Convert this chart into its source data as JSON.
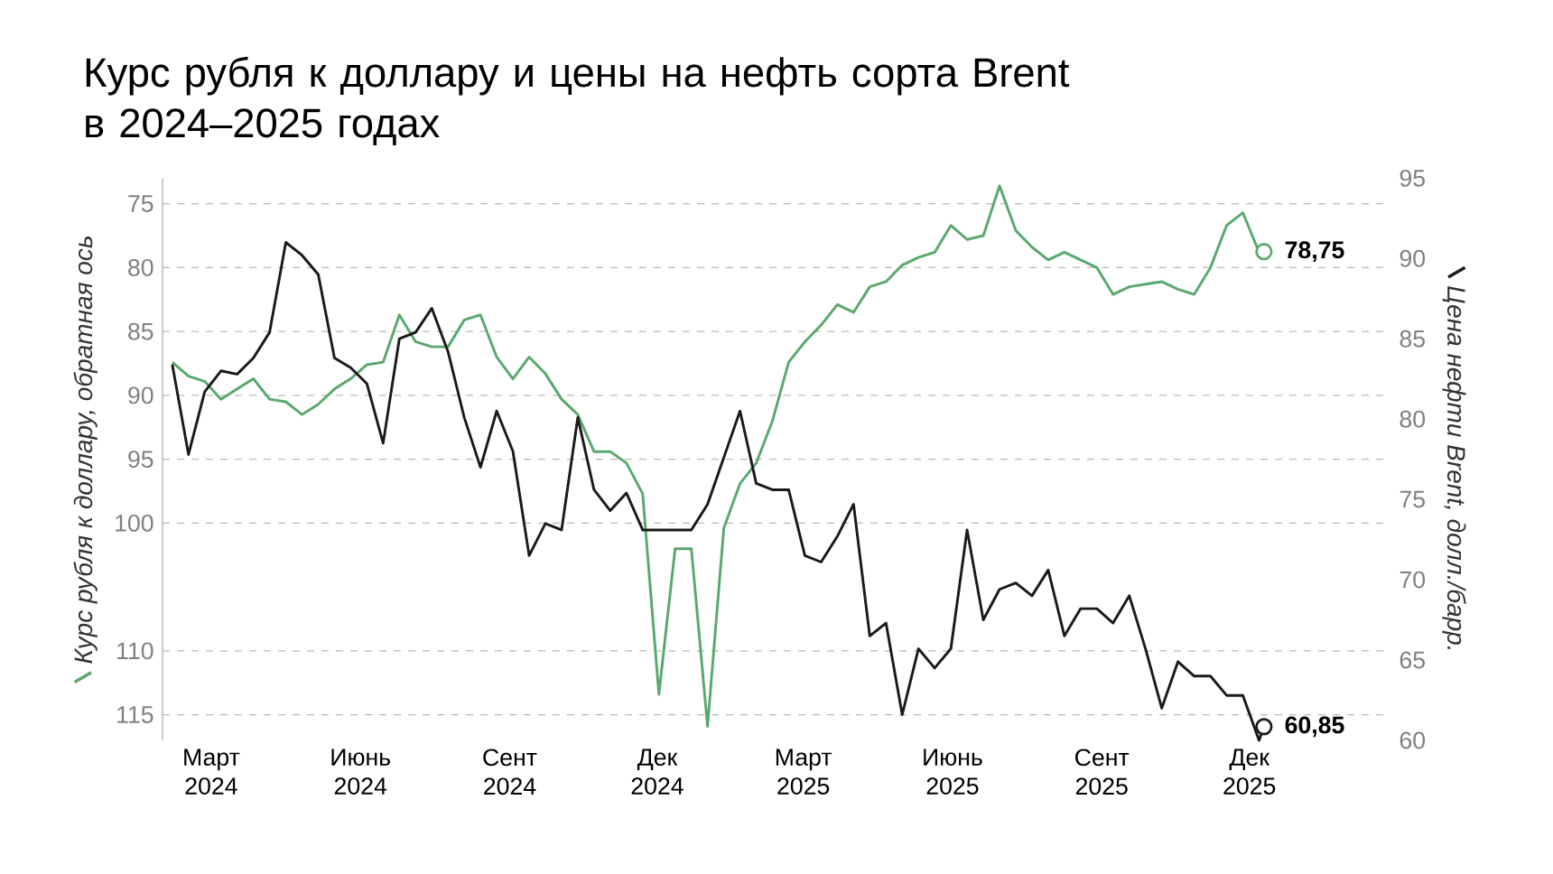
{
  "chart_data": {
    "type": "line",
    "title": "Курс рубля к доллару и цены на нефть сорта Brent в 2024–2025 годах",
    "ylabel": "Курс рубля к доллару, обратная ось",
    "y2label": "Цена нефти Brent, долл./барр.",
    "x": [
      "2024-02-06",
      "2024-02-16",
      "2024-02-26",
      "2024-03-07",
      "2024-03-17",
      "2024-03-27",
      "2024-04-06",
      "2024-04-16",
      "2024-04-26",
      "2024-05-06",
      "2024-05-16",
      "2024-05-26",
      "2024-06-05",
      "2024-06-15",
      "2024-06-25",
      "2024-07-05",
      "2024-07-15",
      "2024-07-25",
      "2024-08-04",
      "2024-08-14",
      "2024-08-24",
      "2024-09-03",
      "2024-09-13",
      "2024-09-23",
      "2024-10-03",
      "2024-10-13",
      "2024-10-23",
      "2024-11-02",
      "2024-11-12",
      "2024-11-22",
      "2024-12-02",
      "2024-12-12",
      "2024-12-22",
      "2025-01-01",
      "2025-01-11",
      "2025-01-21",
      "2025-01-31",
      "2025-02-10",
      "2025-02-20",
      "2025-03-02",
      "2025-03-12",
      "2025-03-22",
      "2025-04-01",
      "2025-04-11",
      "2025-04-21",
      "2025-05-01",
      "2025-05-11",
      "2025-05-21",
      "2025-05-31",
      "2025-06-10",
      "2025-06-20",
      "2025-06-30",
      "2025-07-10",
      "2025-07-20",
      "2025-07-30",
      "2025-08-09",
      "2025-08-19",
      "2025-08-29",
      "2025-09-08",
      "2025-09-18",
      "2025-09-28",
      "2025-10-08",
      "2025-10-18",
      "2025-10-28",
      "2025-11-07",
      "2025-11-17",
      "2025-11-27",
      "2025-12-07",
      "2025-12-10"
    ],
    "series": [
      {
        "color": "#5aa86e",
        "values": [
          87.4,
          88.5,
          88.9,
          90.3,
          89.5,
          88.7,
          90.3,
          90.5,
          91.5,
          90.7,
          89.5,
          88.7,
          87.6,
          87.4,
          83.7,
          85.8,
          86.2,
          86.2,
          84.1,
          83.7,
          87.0,
          88.7,
          87.0,
          88.3,
          90.3,
          91.5,
          94.4,
          94.4,
          95.3,
          97.7,
          113.4,
          102.0,
          102.0,
          115.9,
          100.4,
          96.9,
          95.3,
          92.0,
          87.4,
          85.8,
          84.5,
          82.9,
          83.5,
          81.5,
          81.1,
          79.8,
          79.2,
          78.8,
          76.7,
          77.8,
          77.5,
          73.6,
          77.1,
          78.4,
          79.4,
          78.8,
          79.4,
          80.0,
          82.1,
          81.5,
          81.3,
          81.1,
          81.7,
          82.1,
          80.0,
          76.7,
          75.7,
          78.8,
          78.75
        ],
        "value_labels": [
          null,
          null,
          null,
          null,
          null,
          null,
          null,
          null,
          null,
          null,
          null,
          null,
          null,
          null,
          null,
          null,
          null,
          null,
          null,
          null,
          null,
          null,
          null,
          null,
          null,
          null,
          null,
          null,
          null,
          null,
          null,
          null,
          null,
          null,
          null,
          null,
          null,
          null,
          null,
          null,
          null,
          null,
          null,
          null,
          null,
          null,
          null,
          null,
          null,
          null,
          null,
          null,
          null,
          null,
          null,
          null,
          null,
          null,
          null,
          null,
          null,
          null,
          null,
          null,
          null,
          null,
          null,
          null,
          "78,75"
        ]
      },
      {
        "color": "#1a1a1a",
        "axis": "y2",
        "values": [
          83.4,
          77.8,
          81.7,
          83.0,
          82.8,
          83.8,
          85.4,
          91.0,
          90.2,
          89.0,
          83.8,
          83.2,
          82.2,
          78.5,
          85.0,
          85.4,
          86.9,
          84.2,
          80.1,
          77.0,
          80.5,
          78.0,
          71.5,
          73.5,
          73.1,
          80.1,
          75.6,
          74.3,
          75.4,
          73.1,
          73.1,
          73.1,
          73.1,
          74.7,
          77.6,
          80.5,
          76.0,
          75.6,
          75.6,
          71.5,
          71.1,
          72.7,
          74.7,
          66.5,
          67.3,
          61.6,
          65.7,
          64.5,
          65.7,
          73.1,
          67.5,
          69.4,
          69.8,
          69.0,
          70.6,
          66.5,
          68.2,
          68.2,
          67.3,
          69.0,
          65.7,
          62.0,
          64.9,
          64.0,
          64.0,
          62.8,
          62.8,
          60.0,
          60.85
        ],
        "value_labels": [
          null,
          null,
          null,
          null,
          null,
          null,
          null,
          null,
          null,
          null,
          null,
          null,
          null,
          null,
          null,
          null,
          null,
          null,
          null,
          null,
          null,
          null,
          null,
          null,
          null,
          null,
          null,
          null,
          null,
          null,
          null,
          null,
          null,
          null,
          null,
          null,
          null,
          null,
          null,
          null,
          null,
          null,
          null,
          null,
          null,
          null,
          null,
          null,
          null,
          null,
          null,
          null,
          null,
          null,
          null,
          null,
          null,
          null,
          null,
          null,
          null,
          null,
          null,
          null,
          null,
          null,
          null,
          null,
          "60,85"
        ]
      }
    ],
    "xlim": [
      "2024-01-31",
      "2026-02-26"
    ],
    "xticks": [
      {
        "value": "2024-03-01",
        "label": "Март 2024"
      },
      {
        "value": "2024-06-01",
        "label": "Июнь 2024"
      },
      {
        "value": "2024-09-01",
        "label": "Сент 2024"
      },
      {
        "value": "2024-12-01",
        "label": "Дек 2024"
      },
      {
        "value": "2025-03-01",
        "label": "Март 2025"
      },
      {
        "value": "2025-06-01",
        "label": "Июнь 2025"
      },
      {
        "value": "2025-09-01",
        "label": "Сент 2025"
      },
      {
        "value": "2025-12-01",
        "label": "Дек 2025"
      }
    ],
    "ylim": [
      117,
      73
    ],
    "yticks": [
      75,
      80,
      85,
      90,
      95,
      100,
      110,
      115
    ],
    "y2lim": [
      60,
      95
    ],
    "y2ticks": [
      60,
      65,
      70,
      75,
      80,
      85,
      90,
      95
    ],
    "grid": "y"
  }
}
